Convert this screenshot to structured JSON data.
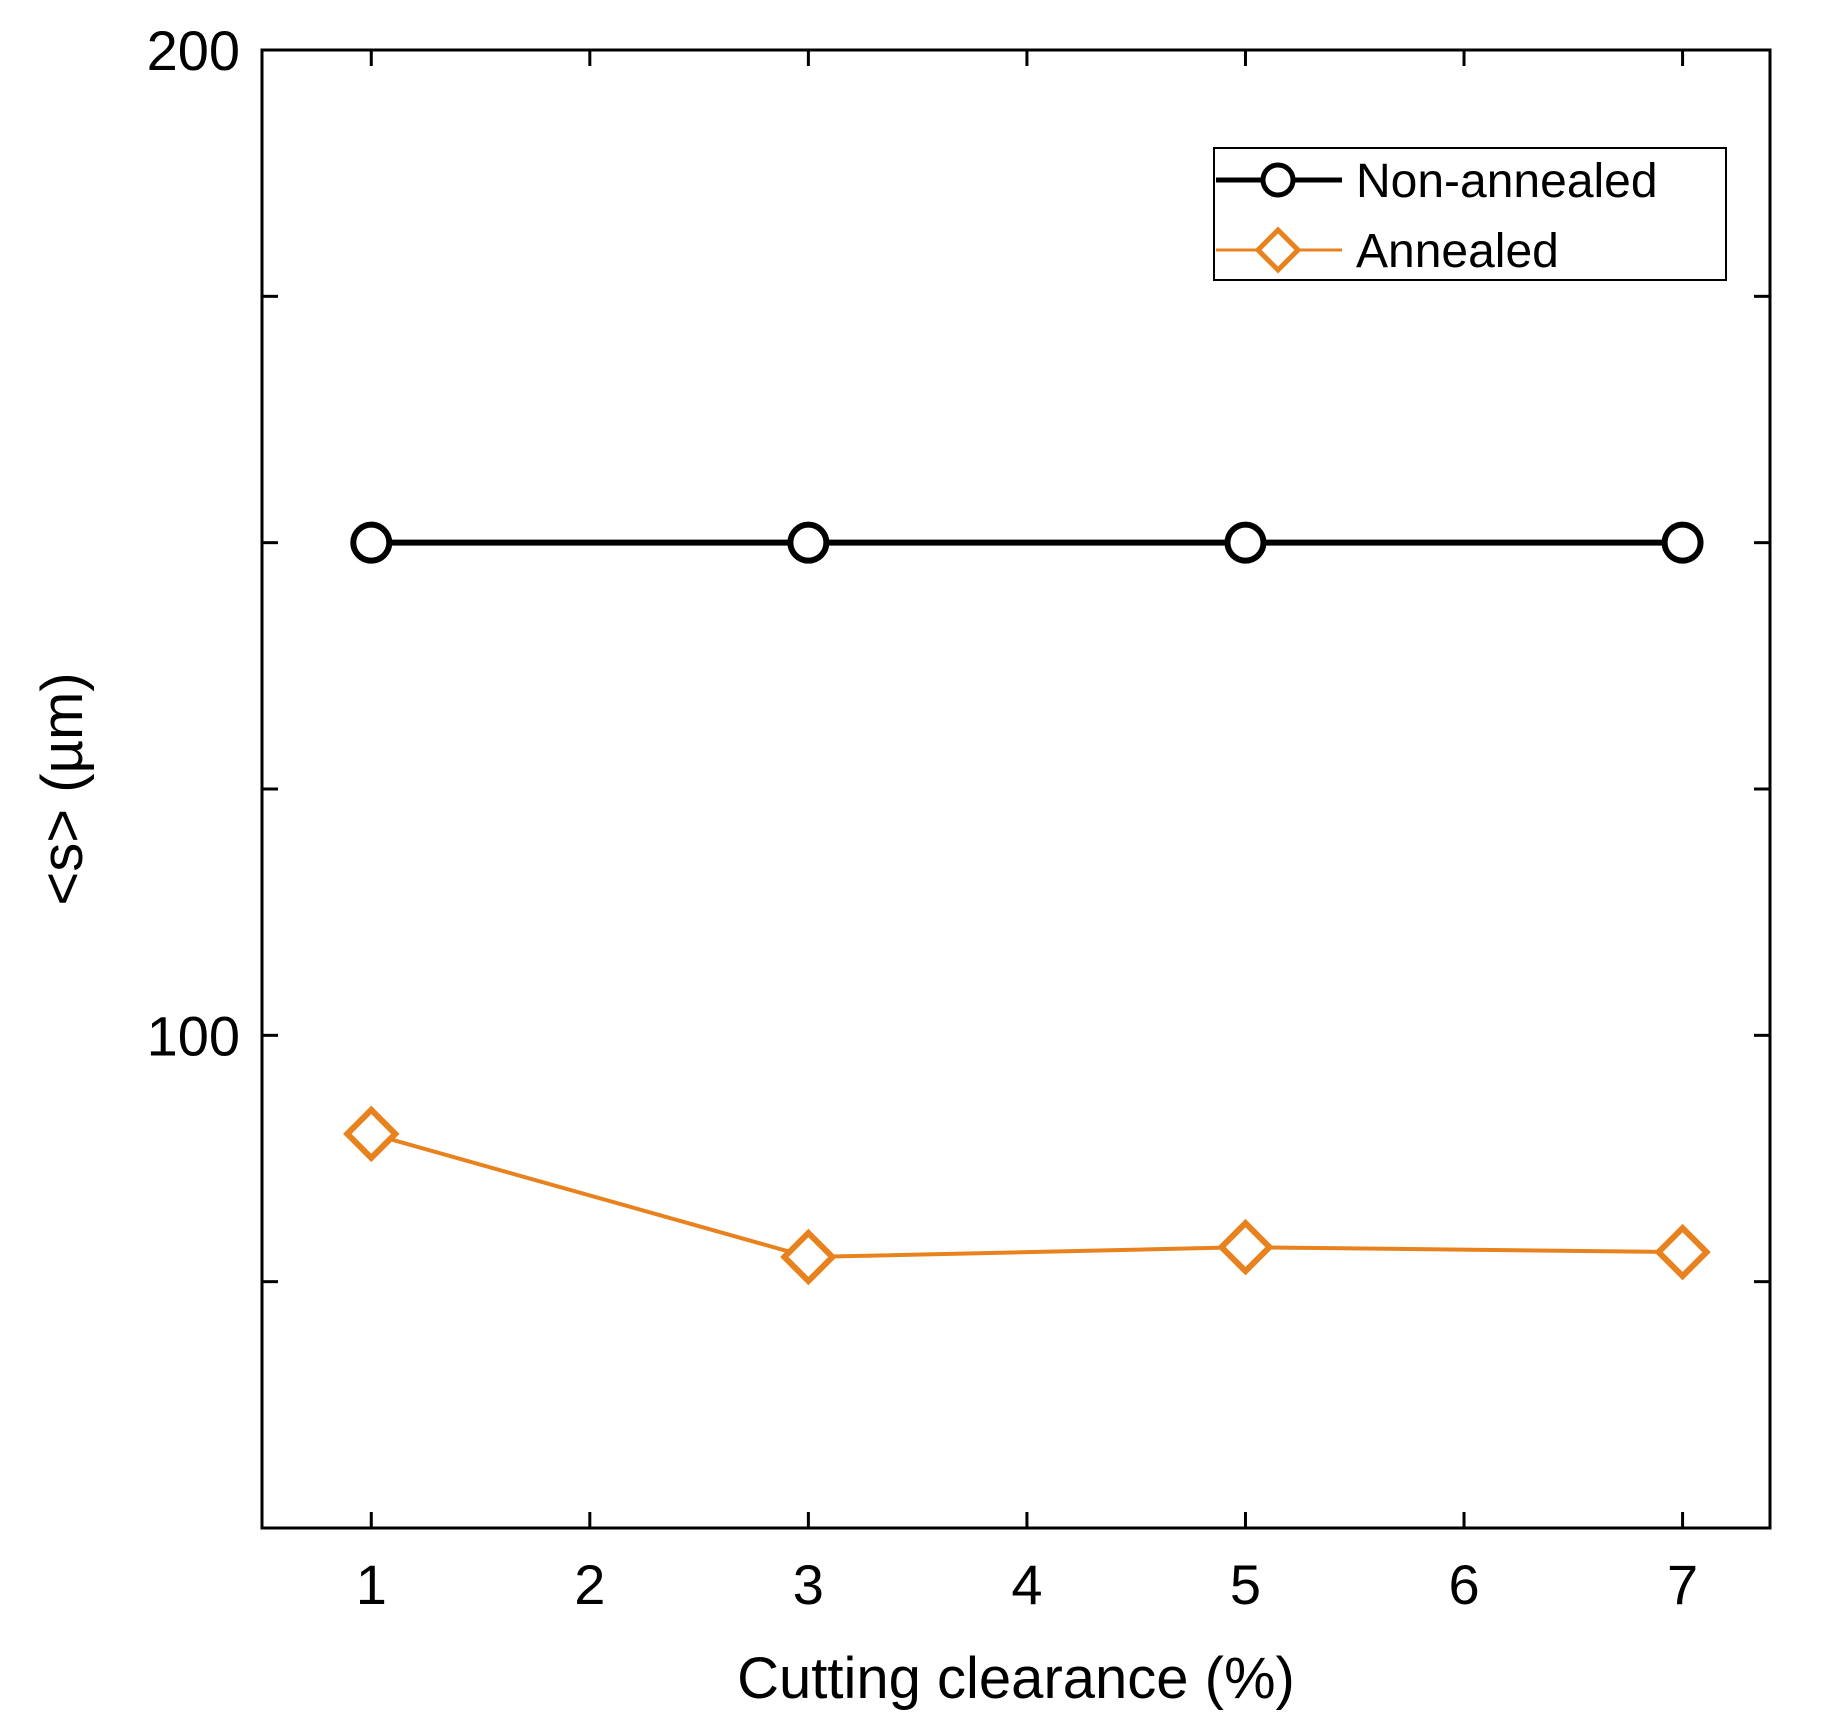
{
  "chart_data": {
    "type": "line",
    "title": "",
    "xlabel": "Cutting clearance (%)",
    "ylabel": "<s> (µm)",
    "xlim": [
      0.5,
      7.4
    ],
    "ylim": [
      50,
      200
    ],
    "x_ticks": [
      1,
      2,
      3,
      4,
      5,
      6,
      7
    ],
    "y_ticks": [
      75,
      100,
      125,
      150,
      175,
      200
    ],
    "y_tick_labels": [
      {
        "value": 100,
        "label": "100"
      },
      {
        "value": 200,
        "label": "200"
      }
    ],
    "grid": false,
    "legend_position": "top-right",
    "series": [
      {
        "name": "Non-annealed",
        "color": "#000000",
        "marker": "circle",
        "x": [
          1,
          3,
          5,
          7
        ],
        "values": [
          150,
          150,
          150,
          150
        ]
      },
      {
        "name": "Annealed",
        "color": "#E8821E",
        "marker": "diamond",
        "x": [
          1,
          3,
          5,
          7
        ],
        "values": [
          90,
          77.5,
          78.5,
          78
        ]
      }
    ]
  }
}
